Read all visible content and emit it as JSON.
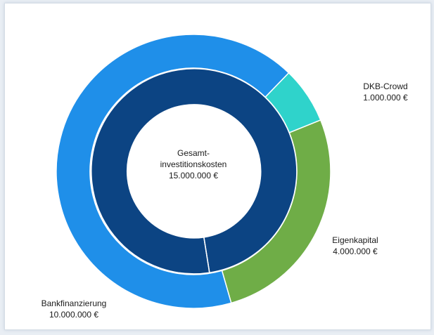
{
  "chart_data": {
    "type": "pie",
    "center_label": {
      "line1": "Gesamt-",
      "line2": "investitionskosten",
      "value": "15.000.000 €"
    },
    "total": 15000000,
    "outer_ring": [
      {
        "name": "DKB-Crowd",
        "value": 1000000,
        "value_label": "1.000.000 €",
        "color": "#2fd3cb"
      },
      {
        "name": "Eigenkapital",
        "value": 4000000,
        "value_label": "4.000.000 €",
        "color": "#6fad47"
      },
      {
        "name": "Bankfinanzierung",
        "value": 10000000,
        "value_label": "10.000.000 €",
        "color": "#1f8fe9"
      }
    ],
    "inner_ring": [
      {
        "name": "Gesamtinvestitionskosten",
        "value": 15000000,
        "color": "#0c4483"
      }
    ]
  }
}
